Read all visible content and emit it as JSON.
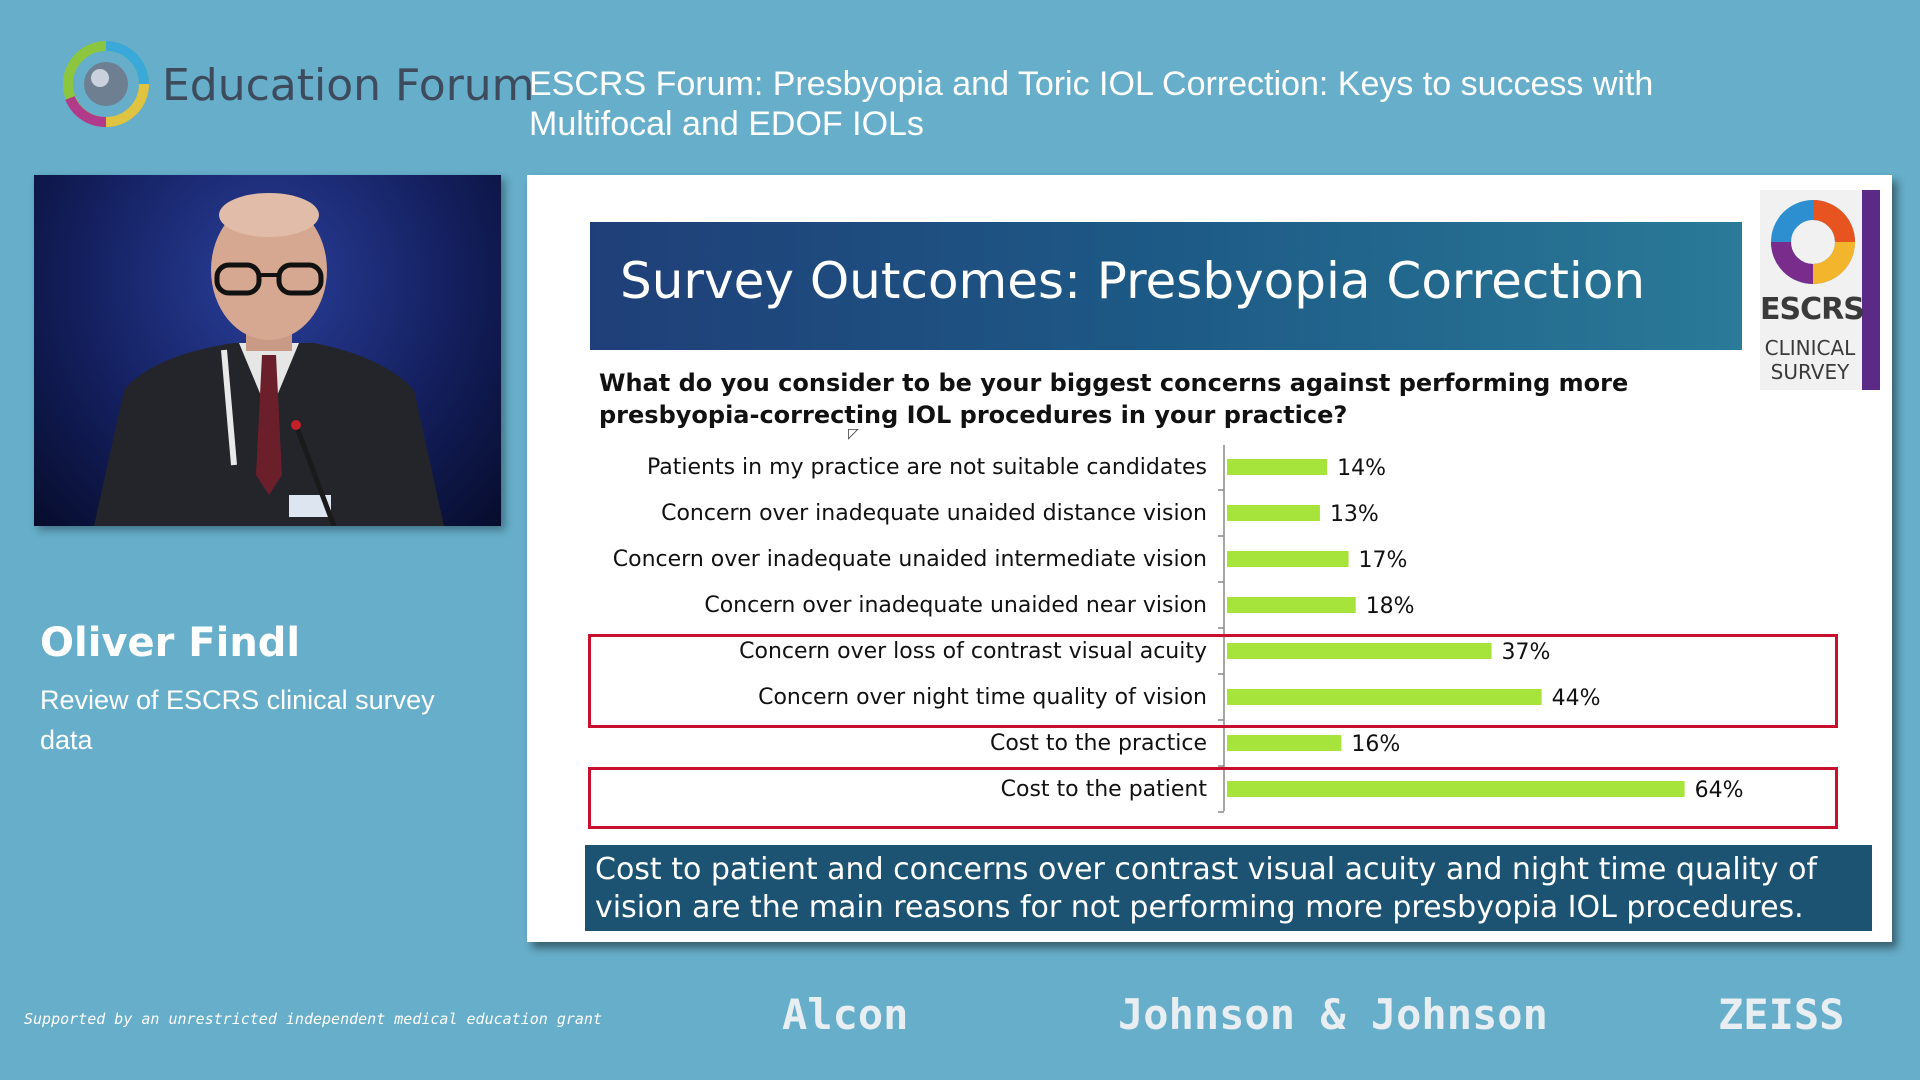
{
  "header": {
    "forum_name": "Education Forum",
    "session_title": "ESCRS Forum: Presbyopia and Toric IOL Correction: Keys to success with Multifocal and EDOF IOLs"
  },
  "speaker": {
    "name": "Oliver Findl",
    "description": "Review of ESCRS clinical survey data"
  },
  "slide": {
    "title": "Survey Outcomes: Presbyopia Correction",
    "badge": {
      "line1": "ESCRS",
      "line2": "CLINICAL",
      "line3": "SURVEY"
    },
    "question": "What do you consider to be your biggest concerns against performing more presbyopia-correcting IOL procedures in your practice?",
    "conclusion": "Cost to patient and concerns over contrast visual acuity and night time quality of vision are the main reasons for not performing more presbyopia IOL procedures."
  },
  "chart_data": {
    "type": "bar",
    "orientation": "horizontal",
    "categories": [
      "Patients in my practice are not suitable candidates",
      "Concern over inadequate unaided distance vision",
      "Concern over inadequate unaided intermediate vision",
      "Concern over inadequate unaided near vision",
      "Concern over loss of contrast visual acuity",
      "Concern over night time quality of vision",
      "Cost to the practice",
      "Cost to the patient"
    ],
    "values": [
      14,
      13,
      17,
      18,
      37,
      44,
      16,
      64
    ],
    "labels": [
      "14%",
      "13%",
      "17%",
      "18%",
      "37%",
      "44%",
      "16%",
      "64%"
    ],
    "unit": "%",
    "xlim": [
      0,
      70
    ],
    "bar_color": "#a6e43b",
    "highlighted": [
      4,
      5,
      7
    ],
    "highlight_color": "#c8102e",
    "grid": false,
    "legend": "none"
  },
  "footer": {
    "grant_text": "Supported by an unrestricted independent medical education grant",
    "sponsors": [
      "Alcon",
      "Johnson & Johnson",
      "ZEISS"
    ]
  },
  "colors": {
    "background": "#66aeca",
    "banner": "#1f3f78",
    "conclusion_bg": "#1d5372",
    "bar": "#a6e43b"
  }
}
